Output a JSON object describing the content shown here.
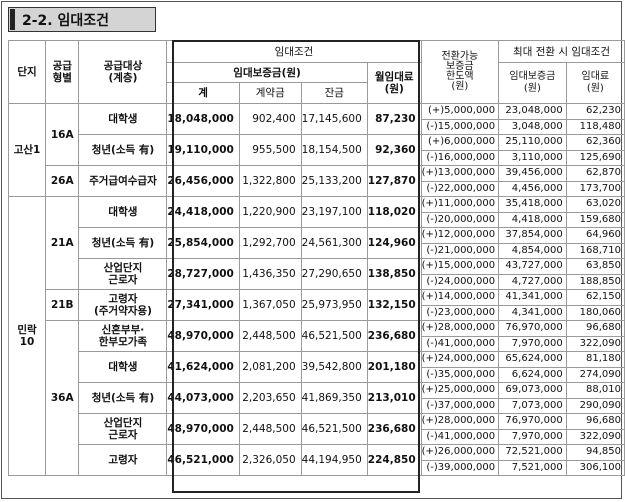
{
  "section_title": "2-2. 임대조건",
  "header": {
    "complex": "단지",
    "supply_type": "공급\n형별",
    "target": "공급대상\n(계층)",
    "rental_conditions": "임대조건",
    "deposit_group": "임대보증금(원)",
    "total": "계",
    "contract": "계약금",
    "balance": "잔금",
    "monthly_rent": "월임대료\n(원)",
    "convertible": "전환가능\n보증금\n한도액\n(원)",
    "max_conversion": "최대 전환 시 임대조건",
    "conv_deposit": "임대보증금\n(원)",
    "conv_rent": "임대료\n(원)"
  },
  "rows": [
    {
      "complex": "고산1",
      "type": "16A",
      "target": "대학생",
      "total": "18,048,000",
      "contract": "902,400",
      "balance": "17,145,600",
      "rent": "87,230",
      "lim1": "(+)5,000,000",
      "dep1": "23,048,000",
      "rent1": "62,230",
      "lim2": "(-)15,000,000",
      "dep2": "3,048,000",
      "rent2": "118,480"
    },
    {
      "complex": "",
      "type": "",
      "target": "청년(소득 有)",
      "total": "19,110,000",
      "contract": "955,500",
      "balance": "18,154,500",
      "rent": "92,360",
      "lim1": "(+)6,000,000",
      "dep1": "25,110,000",
      "rent1": "62,360",
      "lim2": "(-)16,000,000",
      "dep2": "3,110,000",
      "rent2": "125,690"
    },
    {
      "complex": "",
      "type": "26A",
      "target": "주거급여수급자",
      "total": "26,456,000",
      "contract": "1,322,800",
      "balance": "25,133,200",
      "rent": "127,870",
      "lim1": "(+)13,000,000",
      "dep1": "39,456,000",
      "rent1": "62,870",
      "lim2": "(-)22,000,000",
      "dep2": "4,456,000",
      "rent2": "173,700"
    },
    {
      "complex": "민락\n10",
      "type": "21A",
      "target": "대학생",
      "total": "24,418,000",
      "contract": "1,220,900",
      "balance": "23,197,100",
      "rent": "118,020",
      "lim1": "(+)11,000,000",
      "dep1": "35,418,000",
      "rent1": "63,020",
      "lim2": "(-)20,000,000",
      "dep2": "4,418,000",
      "rent2": "159,680"
    },
    {
      "complex": "",
      "type": "",
      "target": "청년(소득 有)",
      "total": "25,854,000",
      "contract": "1,292,700",
      "balance": "24,561,300",
      "rent": "124,960",
      "lim1": "(+)12,000,000",
      "dep1": "37,854,000",
      "rent1": "64,960",
      "lim2": "(-)21,000,000",
      "dep2": "4,854,000",
      "rent2": "168,710"
    },
    {
      "complex": "",
      "type": "",
      "target": "산업단지\n근로자",
      "total": "28,727,000",
      "contract": "1,436,350",
      "balance": "27,290,650",
      "rent": "138,850",
      "lim1": "(+)15,000,000",
      "dep1": "43,727,000",
      "rent1": "63,850",
      "lim2": "(-)24,000,000",
      "dep2": "4,727,000",
      "rent2": "188,850"
    },
    {
      "complex": "",
      "type": "21B",
      "target": "고령자\n(주거약자용)",
      "total": "27,341,000",
      "contract": "1,367,050",
      "balance": "25,973,950",
      "rent": "132,150",
      "lim1": "(+)14,000,000",
      "dep1": "41,341,000",
      "rent1": "62,150",
      "lim2": "(-)23,000,000",
      "dep2": "4,341,000",
      "rent2": "180,060"
    },
    {
      "complex": "",
      "type": "36A",
      "target": "신혼부부·\n한부모가족",
      "total": "48,970,000",
      "contract": "2,448,500",
      "balance": "46,521,500",
      "rent": "236,680",
      "lim1": "(+)28,000,000",
      "dep1": "76,970,000",
      "rent1": "96,680",
      "lim2": "(-)41,000,000",
      "dep2": "7,970,000",
      "rent2": "322,090"
    },
    {
      "complex": "",
      "type": "",
      "target": "대학생",
      "total": "41,624,000",
      "contract": "2,081,200",
      "balance": "39,542,800",
      "rent": "201,180",
      "lim1": "(+)24,000,000",
      "dep1": "65,624,000",
      "rent1": "81,180",
      "lim2": "(-)35,000,000",
      "dep2": "6,624,000",
      "rent2": "274,090"
    },
    {
      "complex": "",
      "type": "",
      "target": "청년(소득 有)",
      "total": "44,073,000",
      "contract": "2,203,650",
      "balance": "41,869,350",
      "rent": "213,010",
      "lim1": "(+)25,000,000",
      "dep1": "69,073,000",
      "rent1": "88,010",
      "lim2": "(-)37,000,000",
      "dep2": "7,073,000",
      "rent2": "290,090"
    },
    {
      "complex": "",
      "type": "",
      "target": "산업단지\n근로자",
      "total": "48,970,000",
      "contract": "2,448,500",
      "balance": "46,521,500",
      "rent": "236,680",
      "lim1": "(+)28,000,000",
      "dep1": "76,970,000",
      "rent1": "96,680",
      "lim2": "(-)41,000,000",
      "dep2": "7,970,000",
      "rent2": "322,090"
    },
    {
      "complex": "",
      "type": "",
      "target": "고령자",
      "total": "46,521,000",
      "contract": "2,326,050",
      "balance": "44,194,950",
      "rent": "224,850",
      "lim1": "(+)26,000,000",
      "dep1": "72,521,000",
      "rent1": "94,850",
      "lim2": "(-)39,000,000",
      "dep2": "7,521,000",
      "rent2": "306,100"
    }
  ]
}
